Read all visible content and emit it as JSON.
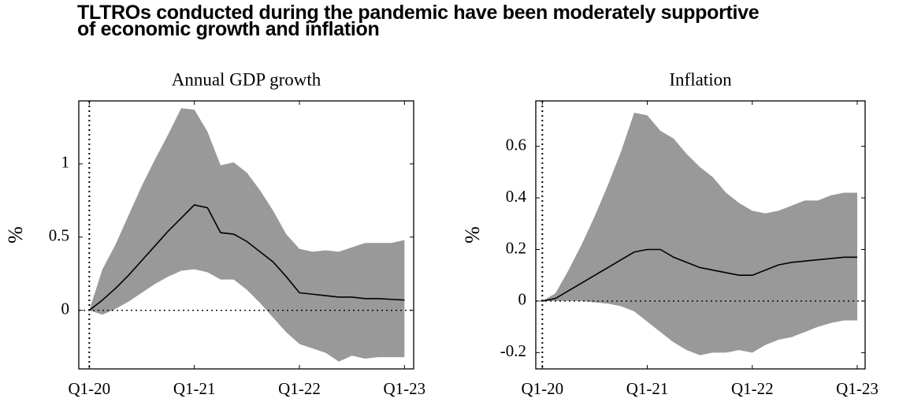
{
  "title": "TLTROs conducted during the pandemic have been moderately supportive of economic growth and inflation",
  "chart_data": [
    {
      "type": "band-line",
      "title": "Annual GDP growth",
      "y_label": "%",
      "x": [
        0,
        0.5,
        1,
        1.5,
        2,
        2.5,
        3,
        3.5,
        4,
        4.5,
        5,
        5.5,
        6,
        6.5,
        7,
        7.5,
        8,
        8.5,
        9,
        9.5,
        10,
        10.5,
        11,
        11.5,
        12
      ],
      "values": [
        0,
        0.07,
        0.15,
        0.24,
        0.34,
        0.44,
        0.54,
        0.63,
        0.72,
        0.7,
        0.53,
        0.52,
        0.47,
        0.4,
        0.33,
        0.23,
        0.12,
        0.11,
        0.1,
        0.09,
        0.09,
        0.08,
        0.08,
        0.075,
        0.07
      ],
      "band_upper": [
        0,
        0.28,
        0.45,
        0.65,
        0.85,
        1.03,
        1.2,
        1.38,
        1.37,
        1.22,
        0.99,
        1.01,
        0.94,
        0.82,
        0.68,
        0.52,
        0.42,
        0.4,
        0.41,
        0.4,
        0.43,
        0.46,
        0.46,
        0.46,
        0.48
      ],
      "band_lower": [
        0,
        -0.03,
        0.01,
        0.06,
        0.12,
        0.18,
        0.23,
        0.27,
        0.28,
        0.26,
        0.21,
        0.21,
        0.14,
        0.05,
        -0.05,
        -0.15,
        -0.23,
        -0.26,
        -0.29,
        -0.35,
        -0.31,
        -0.33,
        -0.32,
        -0.32,
        -0.32
      ],
      "line_color": "#000000",
      "band_color": "#999999",
      "xlim": [
        -0.4,
        12.35
      ],
      "ylim": [
        -0.4,
        1.43
      ],
      "xticks": [
        {
          "value": 0,
          "label": "Q1-20"
        },
        {
          "value": 4,
          "label": "Q1-21"
        },
        {
          "value": 8,
          "label": "Q1-22"
        },
        {
          "value": 12,
          "label": "Q1-23"
        }
      ],
      "yticks": [
        0,
        0.5,
        1
      ],
      "hline": 0,
      "vline": 0
    },
    {
      "type": "band-line",
      "title": "Inflation",
      "y_label": "%",
      "x": [
        0,
        0.5,
        1,
        1.5,
        2,
        2.5,
        3,
        3.5,
        4,
        4.5,
        5,
        5.5,
        6,
        6.5,
        7,
        7.5,
        8,
        8.5,
        9,
        9.5,
        10,
        10.5,
        11,
        11.5,
        12
      ],
      "values": [
        0,
        0.01,
        0.04,
        0.07,
        0.1,
        0.13,
        0.16,
        0.19,
        0.2,
        0.2,
        0.17,
        0.15,
        0.13,
        0.12,
        0.11,
        0.1,
        0.1,
        0.12,
        0.14,
        0.15,
        0.155,
        0.16,
        0.165,
        0.17,
        0.17
      ],
      "band_upper": [
        0,
        0.03,
        0.12,
        0.22,
        0.33,
        0.45,
        0.58,
        0.73,
        0.72,
        0.66,
        0.63,
        0.57,
        0.52,
        0.48,
        0.42,
        0.38,
        0.35,
        0.34,
        0.35,
        0.37,
        0.39,
        0.39,
        0.41,
        0.42,
        0.42
      ],
      "band_lower": [
        0,
        0,
        0,
        0,
        -0.005,
        -0.01,
        -0.02,
        -0.04,
        -0.08,
        -0.12,
        -0.16,
        -0.19,
        -0.21,
        -0.2,
        -0.2,
        -0.19,
        -0.2,
        -0.17,
        -0.15,
        -0.14,
        -0.12,
        -0.1,
        -0.085,
        -0.075,
        -0.075
      ],
      "line_color": "#000000",
      "band_color": "#999999",
      "xlim": [
        -0.25,
        12.3
      ],
      "ylim": [
        -0.263,
        0.776
      ],
      "xticks": [
        {
          "value": 0,
          "label": "Q1-20"
        },
        {
          "value": 4,
          "label": "Q1-21"
        },
        {
          "value": 8,
          "label": "Q1-22"
        },
        {
          "value": 12,
          "label": "Q1-23"
        }
      ],
      "yticks": [
        -0.2,
        0,
        0.2,
        0.4,
        0.6
      ],
      "hline": 0,
      "vline": 0
    }
  ]
}
